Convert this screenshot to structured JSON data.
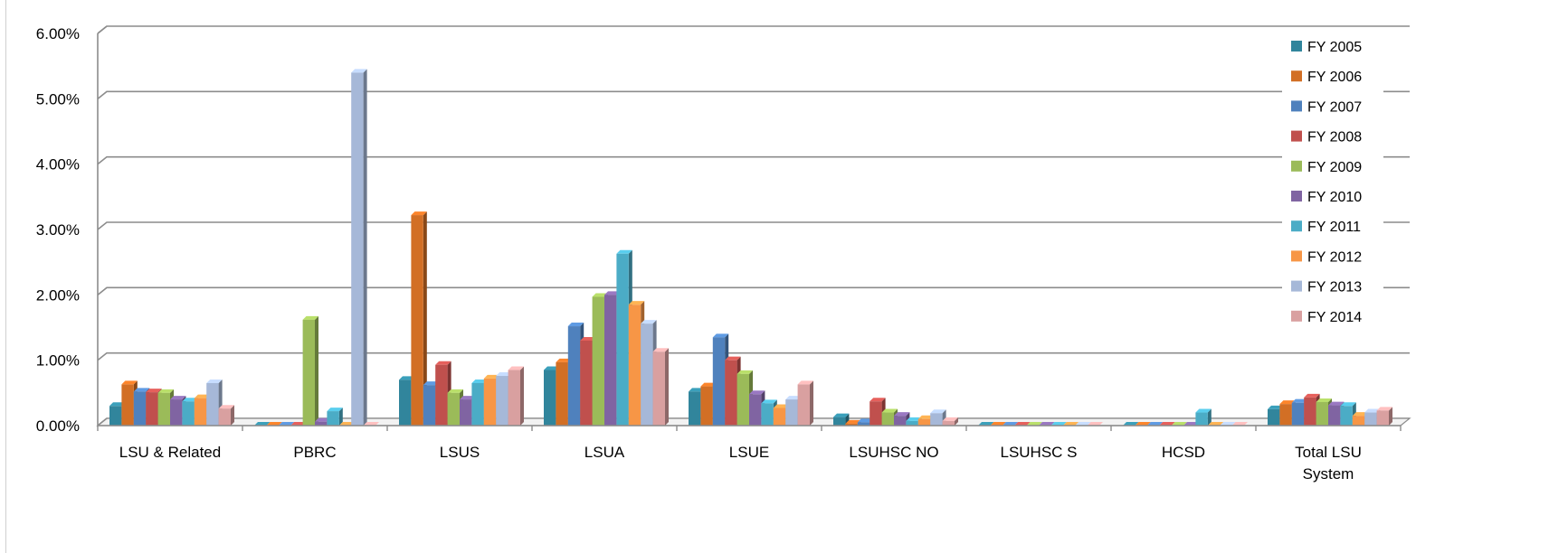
{
  "chart_data": {
    "type": "bar",
    "title": "",
    "xlabel": "",
    "ylabel": "",
    "ylim": [
      0,
      6
    ],
    "y_tick_labels": [
      "0.00%",
      "1.00%",
      "2.00%",
      "3.00%",
      "4.00%",
      "5.00%",
      "6.00%"
    ],
    "grid": true,
    "legend_position": "right",
    "categories": [
      "LSU & Related",
      "PBRC",
      "LSUS",
      "LSUA",
      "LSUE",
      "LSUHSC NO",
      "LSUHSC S",
      "HCSD",
      "Total LSU System"
    ],
    "series": [
      {
        "name": "FY 2005",
        "color": "#31859C",
        "values": [
          0.3,
          0.0,
          0.7,
          0.85,
          0.52,
          0.13,
          0.0,
          0.0,
          0.25
        ]
      },
      {
        "name": "FY 2006",
        "color": "#D26F25",
        "values": [
          0.63,
          0.0,
          3.22,
          0.97,
          0.6,
          0.03,
          0.0,
          0.0,
          0.33
        ]
      },
      {
        "name": "FY 2007",
        "color": "#4F81BD",
        "values": [
          0.52,
          0.0,
          0.62,
          1.52,
          1.35,
          0.05,
          0.0,
          0.0,
          0.35
        ]
      },
      {
        "name": "FY 2008",
        "color": "#C0504D",
        "values": [
          0.51,
          0.0,
          0.93,
          1.3,
          1.0,
          0.37,
          0.0,
          0.0,
          0.43
        ]
      },
      {
        "name": "FY 2009",
        "color": "#9BBB59",
        "values": [
          0.5,
          1.62,
          0.5,
          1.97,
          0.79,
          0.2,
          0.0,
          0.0,
          0.36
        ]
      },
      {
        "name": "FY 2010",
        "color": "#8064A2",
        "values": [
          0.4,
          0.06,
          0.4,
          2.0,
          0.48,
          0.15,
          0.0,
          0.0,
          0.31
        ]
      },
      {
        "name": "FY 2011",
        "color": "#4BACC6",
        "values": [
          0.37,
          0.22,
          0.65,
          2.63,
          0.34,
          0.07,
          0.0,
          0.2,
          0.3
        ]
      },
      {
        "name": "FY 2012",
        "color": "#F79646",
        "values": [
          0.42,
          0.0,
          0.72,
          1.85,
          0.27,
          0.1,
          0.0,
          0.0,
          0.15
        ]
      },
      {
        "name": "FY 2013",
        "color": "#A6B8D8",
        "values": [
          0.65,
          5.4,
          0.76,
          1.56,
          0.4,
          0.19,
          0.0,
          0.0,
          0.2
        ]
      },
      {
        "name": "FY 2014",
        "color": "#D9A0A0",
        "values": [
          0.26,
          0.0,
          0.85,
          1.13,
          0.63,
          0.07,
          0.0,
          0.0,
          0.23
        ]
      }
    ]
  }
}
